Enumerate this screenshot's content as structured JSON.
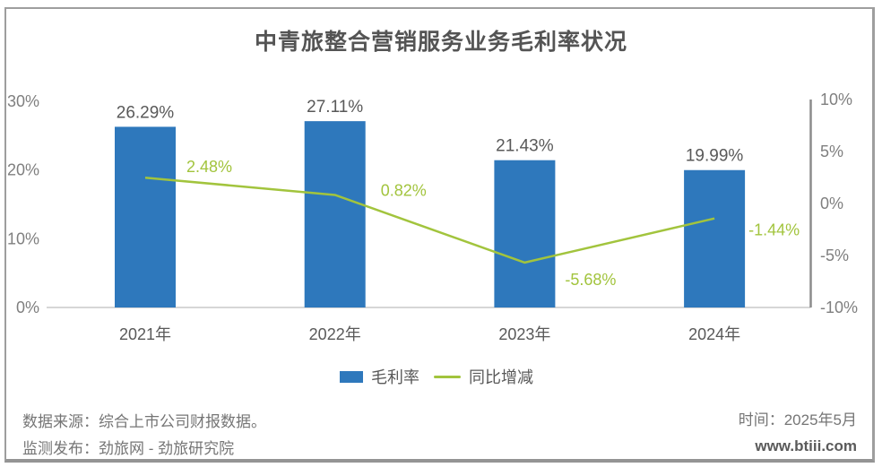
{
  "title": "中青旅整合营销服务业务毛利率状况",
  "chart_data": {
    "type": "combo-bar-line",
    "categories": [
      "2021年",
      "2022年",
      "2023年",
      "2024年"
    ],
    "series": [
      {
        "name": "毛利率",
        "type": "bar",
        "axis": "left",
        "values": [
          26.29,
          27.11,
          21.43,
          19.99
        ],
        "data_labels": [
          "26.29%",
          "27.11%",
          "21.43%",
          "19.99%"
        ]
      },
      {
        "name": "同比增减",
        "type": "line",
        "axis": "right",
        "values": [
          2.48,
          0.82,
          -5.68,
          -1.44
        ],
        "data_labels": [
          "2.48%",
          "0.82%",
          "-5.68%",
          "-1.44%"
        ]
      }
    ],
    "left_axis": {
      "min": 0,
      "max": 30,
      "ticks": [
        {
          "value": 0,
          "label": "0%"
        },
        {
          "value": 10,
          "label": "10%"
        },
        {
          "value": 20,
          "label": "20%"
        },
        {
          "value": 30,
          "label": "30%"
        }
      ]
    },
    "right_axis": {
      "min": -10,
      "max": 10,
      "ticks": [
        {
          "value": -10,
          "label": "-10%"
        },
        {
          "value": -5,
          "label": "-5%"
        },
        {
          "value": 0,
          "label": "0%"
        },
        {
          "value": 5,
          "label": "5%"
        },
        {
          "value": 10,
          "label": "10%"
        }
      ]
    },
    "grid": "baseline-only",
    "legend_position": "bottom",
    "colors": {
      "bar": "#2E78BC",
      "line": "#A2C43D",
      "data_label": "#595959",
      "tick_label": "#7F7F7F",
      "category_label": "#595959",
      "baseline": "#D6D6D6",
      "right_axis_line": "#8C8C8C"
    }
  },
  "footer": {
    "source": "数据来源：综合上市公司财报数据。",
    "publisher": "监测发布：劲旅网 - 劲旅研究院",
    "time": "时间：2025年5月",
    "website": "www.btiii.com"
  }
}
